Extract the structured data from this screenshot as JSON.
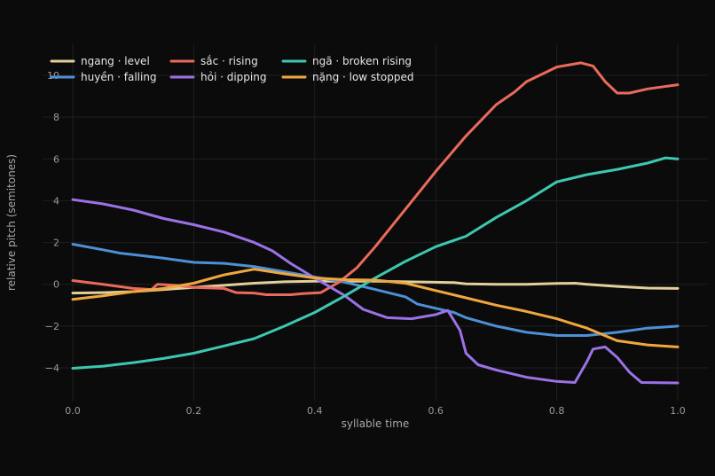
{
  "chart_data": {
    "type": "line",
    "xlabel": "syllable time",
    "ylabel": "relative pitch (semitones)",
    "xlim": [
      -0.05,
      1.04
    ],
    "ylim": [
      -5.3,
      11.5
    ],
    "xticks": [
      0.0,
      0.2,
      0.4,
      0.6,
      0.8,
      1.0
    ],
    "xtick_labels": [
      "0.0",
      "0.2",
      "0.4",
      "0.6",
      "0.8",
      "1.0"
    ],
    "yticks": [
      -4,
      -2,
      0,
      2,
      4,
      6,
      8,
      10
    ],
    "ytick_labels": [
      "−4",
      "−2",
      "0",
      "2",
      "4",
      "6",
      "8",
      "10"
    ],
    "grid": true,
    "legend_position": "top-left",
    "series": [
      {
        "name": "ngang · level",
        "color": "#e2cf9a",
        "points": [
          [
            0.0,
            -0.42
          ],
          [
            0.05,
            -0.4
          ],
          [
            0.1,
            -0.35
          ],
          [
            0.15,
            -0.25
          ],
          [
            0.2,
            -0.15
          ],
          [
            0.25,
            -0.05
          ],
          [
            0.3,
            0.05
          ],
          [
            0.35,
            0.12
          ],
          [
            0.4,
            0.15
          ],
          [
            0.45,
            0.15
          ],
          [
            0.5,
            0.15
          ],
          [
            0.55,
            0.12
          ],
          [
            0.6,
            0.1
          ],
          [
            0.63,
            0.08
          ],
          [
            0.65,
            0.02
          ],
          [
            0.7,
            0.0
          ],
          [
            0.75,
            0.0
          ],
          [
            0.8,
            0.04
          ],
          [
            0.83,
            0.05
          ],
          [
            0.85,
            0.0
          ],
          [
            0.9,
            -0.1
          ],
          [
            0.95,
            -0.18
          ],
          [
            1.0,
            -0.2
          ]
        ]
      },
      {
        "name": "huyền · falling",
        "color": "#4e8fd6",
        "points": [
          [
            0.0,
            1.92
          ],
          [
            0.05,
            1.65
          ],
          [
            0.08,
            1.48
          ],
          [
            0.1,
            1.42
          ],
          [
            0.15,
            1.25
          ],
          [
            0.2,
            1.05
          ],
          [
            0.25,
            1.0
          ],
          [
            0.3,
            0.85
          ],
          [
            0.35,
            0.6
          ],
          [
            0.4,
            0.35
          ],
          [
            0.45,
            0.1
          ],
          [
            0.5,
            -0.25
          ],
          [
            0.55,
            -0.6
          ],
          [
            0.57,
            -0.95
          ],
          [
            0.6,
            -1.15
          ],
          [
            0.63,
            -1.35
          ],
          [
            0.65,
            -1.6
          ],
          [
            0.7,
            -2.0
          ],
          [
            0.75,
            -2.3
          ],
          [
            0.8,
            -2.45
          ],
          [
            0.85,
            -2.45
          ],
          [
            0.9,
            -2.3
          ],
          [
            0.95,
            -2.1
          ],
          [
            1.0,
            -2.0
          ]
        ]
      },
      {
        "name": "sắc · rising",
        "color": "#ea6a5c",
        "points": [
          [
            0.0,
            0.18
          ],
          [
            0.05,
            0.0
          ],
          [
            0.1,
            -0.2
          ],
          [
            0.13,
            -0.25
          ],
          [
            0.14,
            0.0
          ],
          [
            0.17,
            -0.05
          ],
          [
            0.2,
            -0.15
          ],
          [
            0.25,
            -0.2
          ],
          [
            0.27,
            -0.4
          ],
          [
            0.3,
            -0.42
          ],
          [
            0.32,
            -0.5
          ],
          [
            0.36,
            -0.5
          ],
          [
            0.38,
            -0.45
          ],
          [
            0.41,
            -0.4
          ],
          [
            0.44,
            0.1
          ],
          [
            0.47,
            0.8
          ],
          [
            0.5,
            1.8
          ],
          [
            0.55,
            3.6
          ],
          [
            0.6,
            5.4
          ],
          [
            0.65,
            7.1
          ],
          [
            0.7,
            8.6
          ],
          [
            0.73,
            9.2
          ],
          [
            0.75,
            9.7
          ],
          [
            0.8,
            10.4
          ],
          [
            0.84,
            10.6
          ],
          [
            0.86,
            10.45
          ],
          [
            0.88,
            9.7
          ],
          [
            0.9,
            9.15
          ],
          [
            0.92,
            9.15
          ],
          [
            0.95,
            9.35
          ],
          [
            1.0,
            9.55
          ]
        ]
      },
      {
        "name": "hỏi · dipping",
        "color": "#9b72e6",
        "points": [
          [
            0.0,
            4.05
          ],
          [
            0.05,
            3.85
          ],
          [
            0.1,
            3.55
          ],
          [
            0.15,
            3.15
          ],
          [
            0.2,
            2.85
          ],
          [
            0.25,
            2.5
          ],
          [
            0.3,
            2.0
          ],
          [
            0.33,
            1.6
          ],
          [
            0.36,
            1.0
          ],
          [
            0.4,
            0.3
          ],
          [
            0.45,
            -0.55
          ],
          [
            0.48,
            -1.2
          ],
          [
            0.52,
            -1.6
          ],
          [
            0.56,
            -1.65
          ],
          [
            0.6,
            -1.45
          ],
          [
            0.62,
            -1.25
          ],
          [
            0.64,
            -2.2
          ],
          [
            0.65,
            -3.3
          ],
          [
            0.67,
            -3.85
          ],
          [
            0.7,
            -4.1
          ],
          [
            0.75,
            -4.45
          ],
          [
            0.8,
            -4.65
          ],
          [
            0.83,
            -4.7
          ],
          [
            0.85,
            -3.7
          ],
          [
            0.86,
            -3.1
          ],
          [
            0.88,
            -3.0
          ],
          [
            0.9,
            -3.5
          ],
          [
            0.92,
            -4.2
          ],
          [
            0.94,
            -4.7
          ],
          [
            1.0,
            -4.72
          ]
        ]
      },
      {
        "name": "ngã · broken rising",
        "color": "#3ec7b0",
        "points": [
          [
            0.0,
            -4.02
          ],
          [
            0.05,
            -3.92
          ],
          [
            0.1,
            -3.75
          ],
          [
            0.15,
            -3.55
          ],
          [
            0.2,
            -3.3
          ],
          [
            0.25,
            -2.95
          ],
          [
            0.3,
            -2.6
          ],
          [
            0.35,
            -2.0
          ],
          [
            0.4,
            -1.35
          ],
          [
            0.45,
            -0.55
          ],
          [
            0.5,
            0.3
          ],
          [
            0.55,
            1.1
          ],
          [
            0.6,
            1.8
          ],
          [
            0.65,
            2.3
          ],
          [
            0.7,
            3.2
          ],
          [
            0.75,
            4.0
          ],
          [
            0.8,
            4.9
          ],
          [
            0.85,
            5.25
          ],
          [
            0.9,
            5.5
          ],
          [
            0.95,
            5.8
          ],
          [
            0.98,
            6.05
          ],
          [
            1.0,
            6.0
          ]
        ]
      },
      {
        "name": "nặng · low stopped",
        "color": "#f0a73d",
        "points": [
          [
            0.0,
            -0.72
          ],
          [
            0.05,
            -0.55
          ],
          [
            0.1,
            -0.35
          ],
          [
            0.15,
            -0.2
          ],
          [
            0.2,
            0.05
          ],
          [
            0.25,
            0.45
          ],
          [
            0.3,
            0.72
          ],
          [
            0.35,
            0.5
          ],
          [
            0.4,
            0.3
          ],
          [
            0.45,
            0.22
          ],
          [
            0.5,
            0.2
          ],
          [
            0.55,
            0.05
          ],
          [
            0.6,
            -0.3
          ],
          [
            0.65,
            -0.65
          ],
          [
            0.7,
            -1.0
          ],
          [
            0.75,
            -1.3
          ],
          [
            0.8,
            -1.65
          ],
          [
            0.85,
            -2.1
          ],
          [
            0.9,
            -2.7
          ],
          [
            0.95,
            -2.9
          ],
          [
            1.0,
            -3.0
          ]
        ]
      }
    ]
  }
}
